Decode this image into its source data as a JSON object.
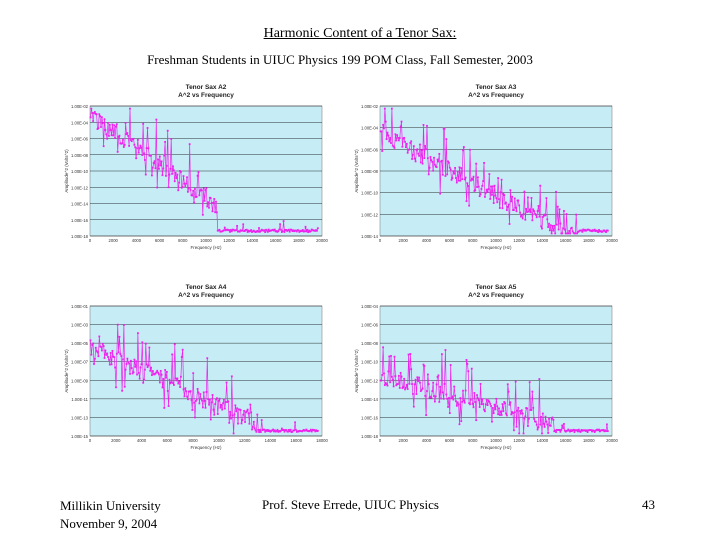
{
  "slide": {
    "title": "Harmonic Content of a Tenor Sax:",
    "subtitle": "Freshman Students in UIUC Physics 199 POM Class, Fall Semester, 2003",
    "footer_institution": "Millikin University",
    "footer_date": "November 9, 2004",
    "footer_author": "Prof. Steve Errede, UIUC Physics",
    "page_number": "43"
  },
  "colors": {
    "plot_bg": "#c6ecf5",
    "series": "#ee22ee",
    "grid": "#000000"
  },
  "chart_data": [
    {
      "type": "line",
      "title": "Tenor Sax A2",
      "subtitle": "A^2 vs Frequency",
      "xlabel": "Frequency (Hz)",
      "ylabel": "Amplitude^2 (Volts^2)",
      "xlim": [
        0,
        20000
      ],
      "xticks": [
        "0",
        "2000",
        "4000",
        "6000",
        "8000",
        "10000",
        "12000",
        "14000",
        "16000",
        "18000",
        "20000"
      ],
      "yticks": [
        "1.00E-02",
        "1.00E-04",
        "1.00E-06",
        "1.00E-08",
        "1.00E-10",
        "1.00E-12",
        "1.00E-14",
        "1.00E-16",
        "1.00E-18"
      ],
      "ylog_range": [
        -18,
        -2
      ],
      "decay_end": 11000,
      "mode": "a2"
    },
    {
      "type": "line",
      "title": "Tenor Sax A3",
      "subtitle": "A^2 vs Frequency",
      "xlabel": "Frequency (Hz)",
      "ylabel": "Amplitude^2 (Volts^2)",
      "xlim": [
        0,
        20000
      ],
      "xticks": [
        "0",
        "2000",
        "4000",
        "6000",
        "8000",
        "10000",
        "12000",
        "14000",
        "16000",
        "18000",
        "20000"
      ],
      "yticks": [
        "1.00E-02",
        "1.00E-04",
        "1.00E-06",
        "1.00E-08",
        "1.00E-10",
        "1.00E-12",
        "1.00E-14"
      ],
      "ylog_range": [
        -14,
        -2
      ],
      "decay_end": 17000,
      "mode": "a3"
    },
    {
      "type": "line",
      "title": "Tenor Sax A4",
      "subtitle": "A^2 vs Frequency",
      "xlabel": "Frequency (Hz)",
      "ylabel": "Amplitude^2 (Volts^2)",
      "xlim": [
        0,
        18000
      ],
      "xticks": [
        "0",
        "2000",
        "4000",
        "6000",
        "8000",
        "10000",
        "12000",
        "14000",
        "16000",
        "18000"
      ],
      "yticks": [
        "1.00E-01",
        "1.00E-03",
        "1.00E-05",
        "1.00E-07",
        "1.00E-09",
        "1.00E-11",
        "1.00E-13",
        "1.00E-15"
      ],
      "ylog_range": [
        -15,
        -1
      ],
      "decay_end": 13000,
      "mode": "a4"
    },
    {
      "type": "line",
      "title": "Tenor Sax A5",
      "subtitle": "A^2 vs Frequency",
      "xlabel": "Frequency (Hz)",
      "ylabel": "Amplitude^2 (Volts^2)",
      "xlim": [
        0,
        20000
      ],
      "xticks": [
        "0",
        "2000",
        "4000",
        "6000",
        "8000",
        "10000",
        "12000",
        "14000",
        "16000",
        "18000",
        "20000"
      ],
      "yticks": [
        "1.00E-04",
        "1.00E-06",
        "1.00E-08",
        "1.00E-10",
        "1.00E-12",
        "1.00E-14",
        "1.00E-16",
        "1.00E-18"
      ],
      "ylog_range": [
        -18,
        -4
      ],
      "decay_end": 15000,
      "mode": "a5"
    }
  ]
}
